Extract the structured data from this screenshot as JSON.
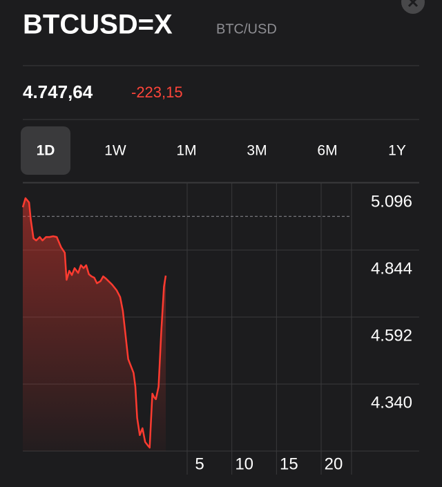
{
  "header": {
    "title": "BTCUSD=X",
    "subtitle": "BTC/USD"
  },
  "quote": {
    "price": "4.747,64",
    "change": "-223,15"
  },
  "tabs": [
    "1D",
    "1W",
    "1M",
    "3M",
    "6M",
    "1Y"
  ],
  "selected_tab": 0,
  "chart_data": {
    "type": "line",
    "x": [
      -13.4,
      -13.1,
      -12.7,
      -12.5,
      -12.2,
      -11.9,
      -11.5,
      -11.2,
      -10.8,
      -10.4,
      -10.0,
      -9.6,
      -9.1,
      -8.7,
      -8.5,
      -8.2,
      -7.9,
      -7.6,
      -7.2,
      -6.9,
      -6.6,
      -6.3,
      -6.0,
      -5.7,
      -5.4,
      -5.1,
      -4.7,
      -4.4,
      -4.1,
      -3.8,
      -3.4,
      -2.9,
      -2.5,
      -2.2,
      -1.9,
      -1.6,
      -1.3,
      -1.0,
      -0.8,
      -0.6,
      -0.3,
      0.0,
      0.3,
      0.6,
      0.8,
      1.1,
      1.3,
      1.5,
      1.8,
      2.1,
      2.4,
      2.6
    ],
    "series": [
      {
        "color": "#ff3b30",
        "values": [
          5005,
          5039,
          5023,
          4958,
          4888,
          4880,
          4893,
          4880,
          4893,
          4893,
          4896,
          4893,
          4854,
          4834,
          4732,
          4766,
          4750,
          4776,
          4758,
          4787,
          4776,
          4787,
          4753,
          4745,
          4740,
          4719,
          4727,
          4745,
          4737,
          4727,
          4714,
          4693,
          4667,
          4615,
          4524,
          4434,
          4408,
          4382,
          4330,
          4213,
          4148,
          4174,
          4122,
          4109,
          4101,
          4304,
          4291,
          4283,
          4330,
          4537,
          4706,
          4748
        ]
      }
    ],
    "previous_close": 4970.79,
    "xlim": [
      -13.4,
      23.4
    ],
    "xticks": [
      5,
      10,
      15,
      20
    ],
    "ylim": [
      4088,
      5096
    ],
    "yticks": [
      {
        "value": 5096,
        "label": "5.096"
      },
      {
        "value": 4844,
        "label": "4.844"
      },
      {
        "value": 4592,
        "label": "4.592"
      },
      {
        "value": 4340,
        "label": "4.340"
      }
    ],
    "grid": true
  }
}
